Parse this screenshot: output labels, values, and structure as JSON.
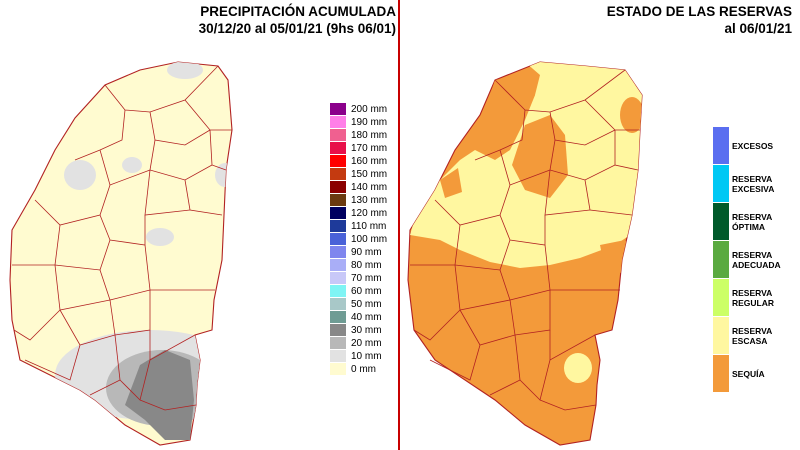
{
  "precipitation": {
    "title_line1": "PRECIPITACIÓN ACUMULADA",
    "title_line2": "30/12/20 al 05/01/21 (9hs 06/01)",
    "legend": [
      {
        "label": "200 mm",
        "color": "#8b008b"
      },
      {
        "label": "190 mm",
        "color": "#ff7fe8"
      },
      {
        "label": "180 mm",
        "color": "#f06090"
      },
      {
        "label": "170 mm",
        "color": "#e8104a"
      },
      {
        "label": "160 mm",
        "color": "#ff0000"
      },
      {
        "label": "150 mm",
        "color": "#c43a10"
      },
      {
        "label": "140 mm",
        "color": "#8b0000"
      },
      {
        "label": "130 mm",
        "color": "#6b3a10"
      },
      {
        "label": "120 mm",
        "color": "#000060"
      },
      {
        "label": "110 mm",
        "color": "#1e3a9a"
      },
      {
        "label": "100 mm",
        "color": "#4a62d8"
      },
      {
        "label": "90 mm",
        "color": "#7f86ee"
      },
      {
        "label": "80 mm",
        "color": "#a9aef7"
      },
      {
        "label": "70 mm",
        "color": "#c8c8f8"
      },
      {
        "label": "60 mm",
        "color": "#7ff4f4"
      },
      {
        "label": "50 mm",
        "color": "#a8c8c8"
      },
      {
        "label": "40 mm",
        "color": "#6f9c94"
      },
      {
        "label": "30 mm",
        "color": "#888888"
      },
      {
        "label": "20 mm",
        "color": "#b8b8b8"
      },
      {
        "label": "10 mm",
        "color": "#e2e2e2"
      },
      {
        "label": "0 mm",
        "color": "#fffbd0"
      }
    ]
  },
  "reserves": {
    "title_line1": "ESTADO DE LAS RESERVAS",
    "title_line2": "al 06/01/21",
    "legend": [
      {
        "label": "EXCESOS",
        "color": "#5a6ef0"
      },
      {
        "label": "RESERVA EXCESIVA",
        "color": "#00c8f4"
      },
      {
        "label": "RESERVA ÓPTIMA",
        "color": "#005a2a"
      },
      {
        "label": "RESERVA ADECUADA",
        "color": "#5aaa40"
      },
      {
        "label": "RESERVA REGULAR",
        "color": "#ccff66"
      },
      {
        "label": "RESERVA ESCASA",
        "color": "#fff7a0"
      },
      {
        "label": "SEQUÍA",
        "color": "#f39a3a"
      }
    ]
  }
}
